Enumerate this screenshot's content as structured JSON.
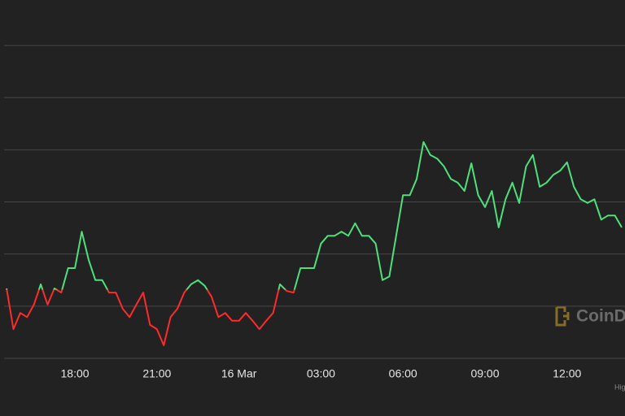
{
  "chart_data": {
    "type": "line",
    "x": [
      15.5,
      15.75,
      16,
      16.25,
      16.5,
      16.75,
      17,
      17.25,
      17.5,
      17.75,
      18,
      18.25,
      18.5,
      18.75,
      19,
      19.25,
      19.5,
      19.75,
      20,
      20.25,
      20.5,
      20.75,
      21,
      21.25,
      21.5,
      21.75,
      22,
      22.25,
      22.5,
      22.75,
      23,
      23.25,
      23.5,
      23.75,
      24,
      24.25,
      24.5,
      24.75,
      25,
      25.25,
      25.5,
      25.75,
      26,
      26.25,
      26.5,
      26.75,
      27,
      27.25,
      27.5,
      27.75,
      28,
      28.25,
      28.5,
      28.75,
      29,
      29.25,
      29.5,
      29.75,
      30,
      30.25,
      30.5,
      30.75,
      31,
      31.25,
      31.5,
      31.75,
      32,
      32.25,
      32.5,
      32.75,
      33,
      33.25,
      33.5,
      33.75,
      34,
      34.25,
      34.5,
      34.75,
      35,
      35.25,
      35.5,
      35.75,
      36,
      36.25,
      36.5,
      36.75,
      37,
      37.25,
      37.5,
      37.75,
      38
    ],
    "values": [
      13.4,
      5.6,
      8.7,
      7.9,
      10.3,
      14.2,
      10.3,
      13.4,
      12.6,
      17.3,
      17.3,
      24.3,
      18.9,
      15.0,
      15.0,
      12.6,
      12.6,
      9.5,
      7.9,
      10.3,
      12.6,
      6.4,
      5.6,
      2.5,
      7.9,
      9.5,
      12.6,
      14.2,
      15.0,
      13.9,
      11.8,
      7.9,
      8.7,
      7.2,
      7.2,
      8.7,
      7.2,
      5.6,
      7.2,
      8.7,
      14.2,
      12.9,
      12.6,
      17.3,
      17.3,
      17.3,
      22.0,
      23.5,
      23.5,
      24.3,
      23.5,
      25.9,
      23.5,
      23.5,
      22.0,
      15.0,
      15.7,
      23.5,
      31.3,
      31.3,
      34.4,
      41.5,
      39.0,
      38.3,
      36.8,
      34.4,
      33.7,
      32.1,
      37.4,
      31.3,
      29.0,
      32.1,
      25.1,
      30.5,
      33.7,
      29.8,
      36.8,
      39.0,
      32.9,
      33.7,
      35.2,
      36.0,
      37.6,
      32.9,
      30.5,
      29.8,
      30.5,
      26.6,
      27.4,
      27.4,
      25.1
    ],
    "baseline": 13.2,
    "color_above": "#4ee07a",
    "color_below": "#ff2a2a",
    "xlim": [
      15.26,
      38.12
    ],
    "xticks": [
      {
        "value": 18,
        "label": "18:00"
      },
      {
        "value": 21,
        "label": "21:00"
      },
      {
        "value": 24,
        "label": "16 Mar"
      },
      {
        "value": 27,
        "label": "03:00"
      },
      {
        "value": 30,
        "label": "06:00"
      },
      {
        "value": 33,
        "label": "09:00"
      },
      {
        "value": 36,
        "label": "12:00"
      }
    ],
    "ylim": [
      0,
      60
    ],
    "yticks": [
      0,
      10,
      20,
      30,
      40,
      50,
      60
    ],
    "grid": true,
    "watermark": "CoinD",
    "credit": "Hig"
  }
}
